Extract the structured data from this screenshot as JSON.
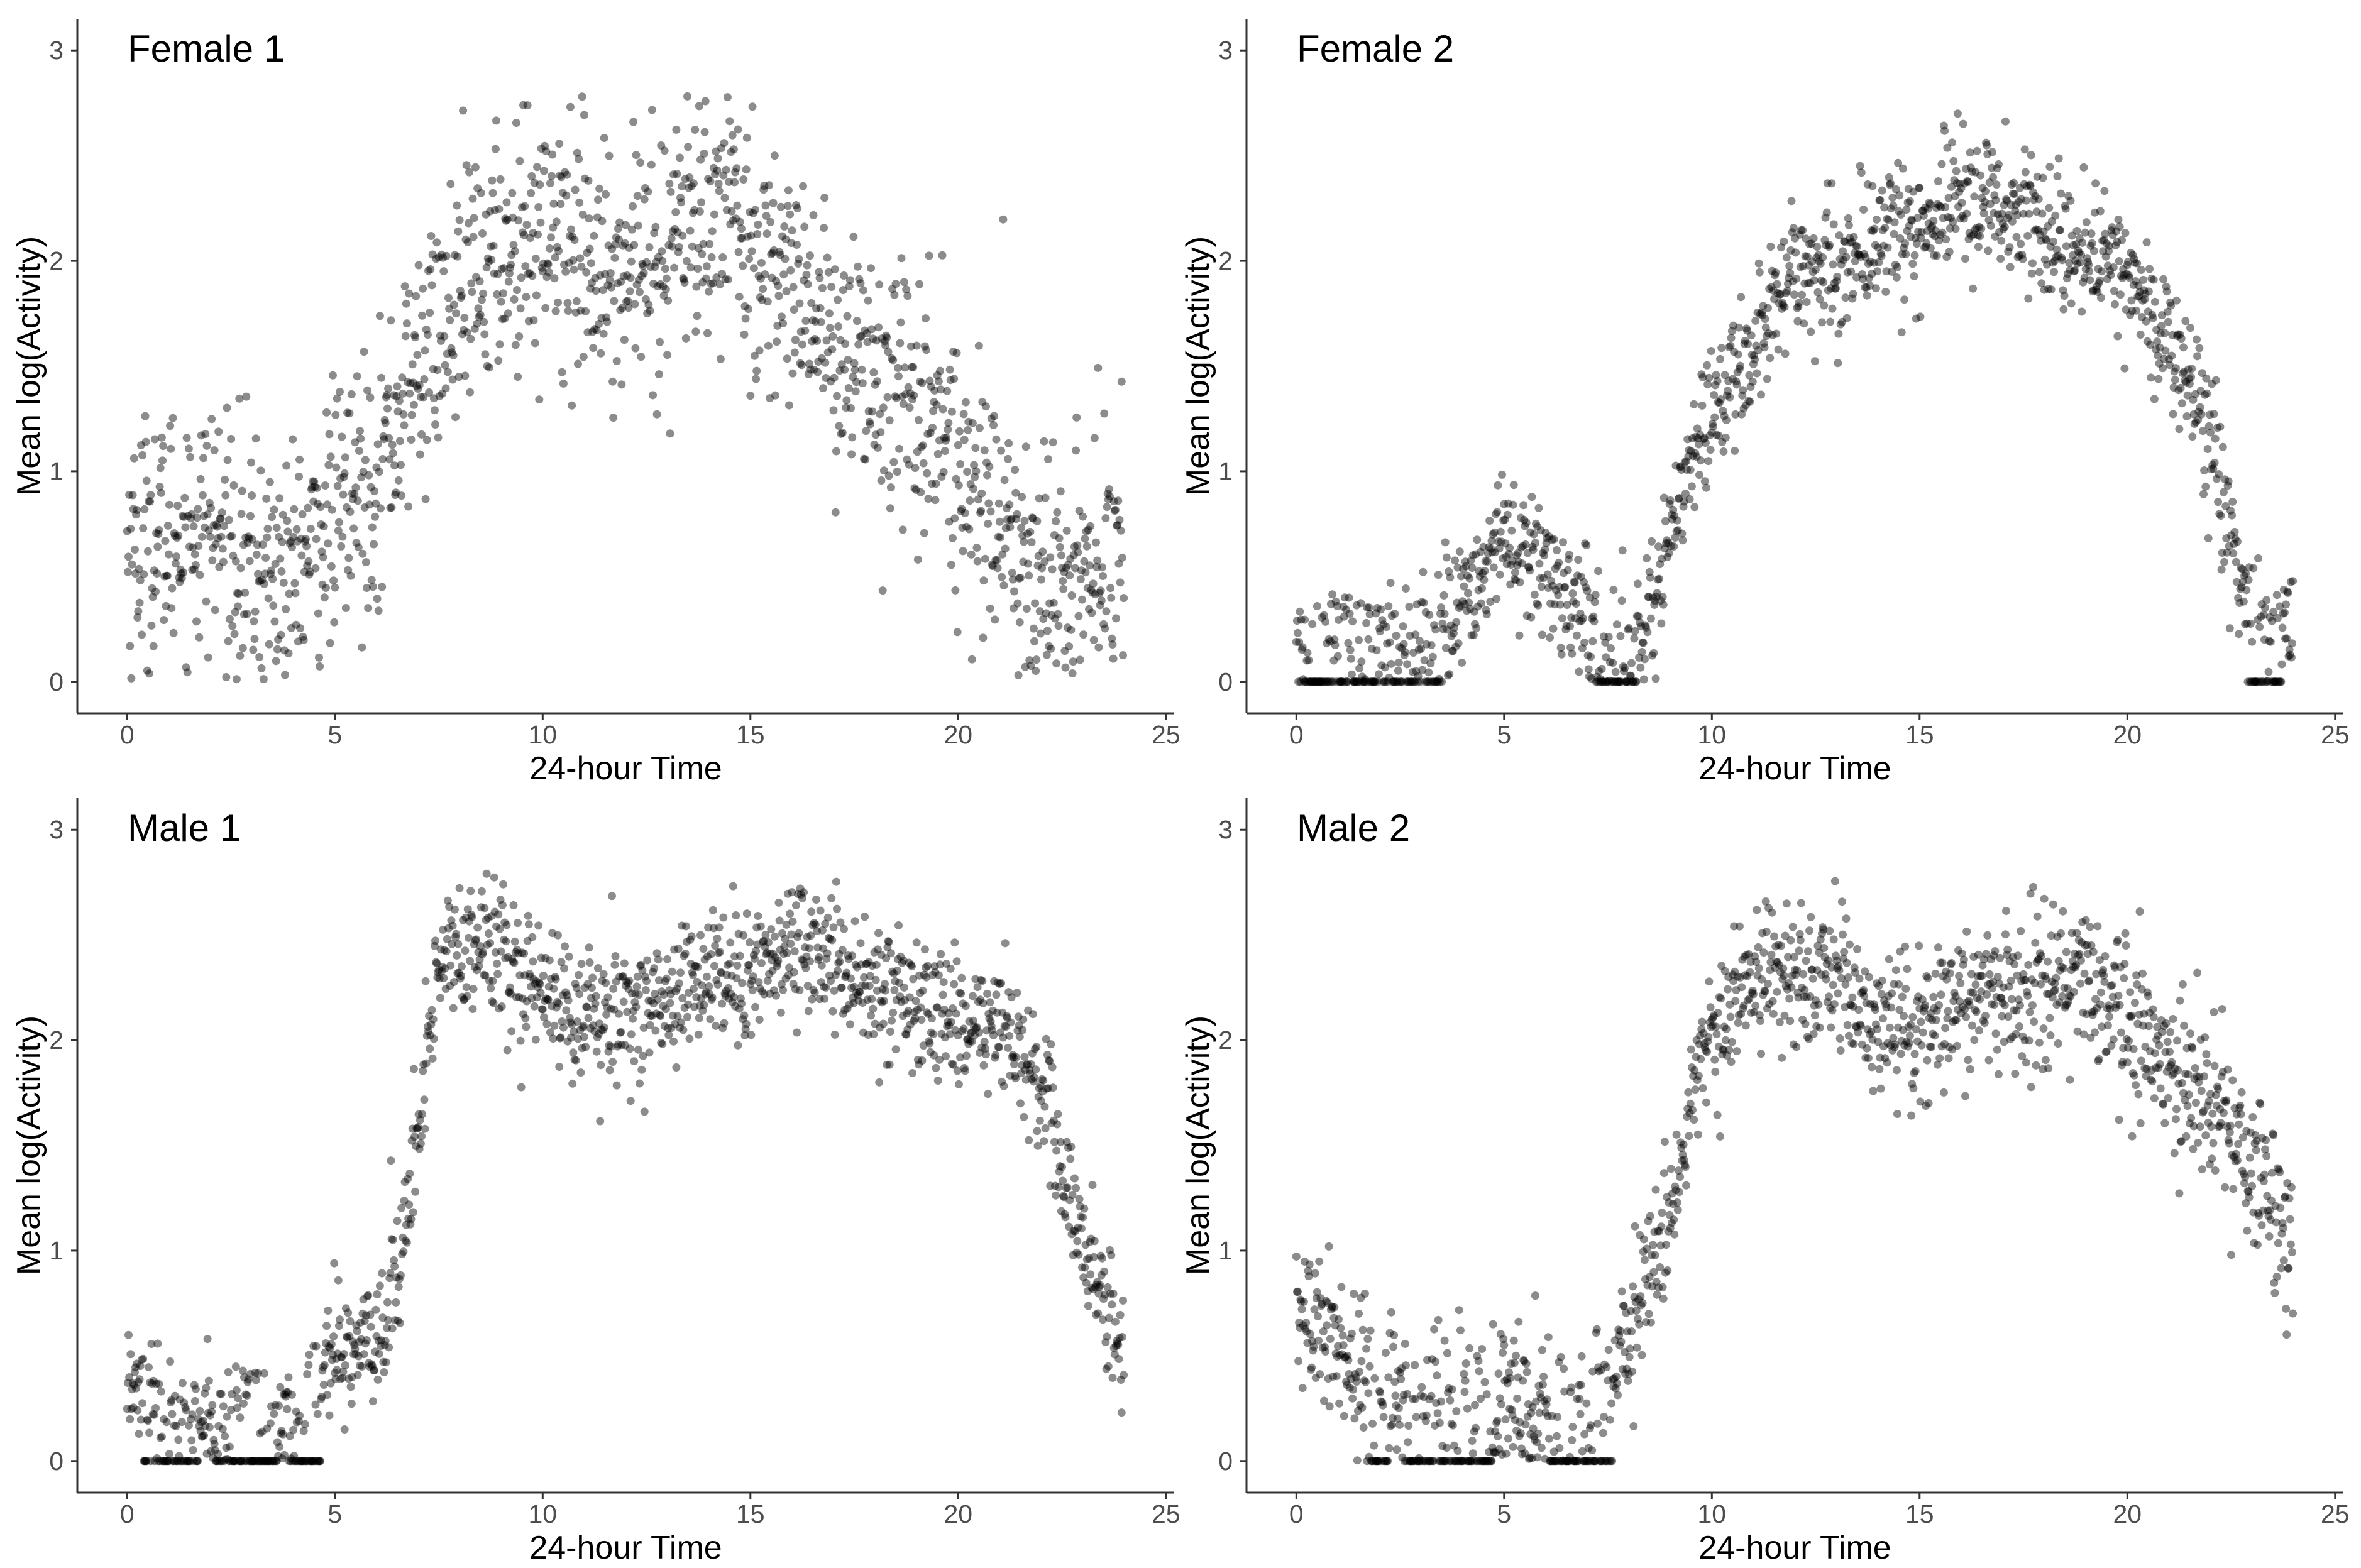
{
  "chart_data": [
    {
      "type": "scatter",
      "title": "Female 1",
      "xlabel": "24-hour Time",
      "ylabel": "Mean log(Activity)",
      "xlim": [
        -1.2,
        25.2
      ],
      "ylim": [
        -0.15,
        3.15
      ],
      "xticks": [
        "0",
        "5",
        "10",
        "15",
        "20",
        "25"
      ],
      "yticks": [
        "0",
        "1",
        "2",
        "3"
      ],
      "series": [
        {
          "name": "Female 1",
          "trend": [
            [
              0,
              0.65
            ],
            [
              2,
              0.75
            ],
            [
              3,
              0.55
            ],
            [
              4,
              0.5
            ],
            [
              5,
              0.8
            ],
            [
              6,
              1.0
            ],
            [
              7,
              1.5
            ],
            [
              8,
              1.8
            ],
            [
              9,
              2.05
            ],
            [
              10,
              2.15
            ],
            [
              11,
              2.0
            ],
            [
              12,
              1.9
            ],
            [
              13,
              2.05
            ],
            [
              14,
              2.25
            ],
            [
              15,
              2.1
            ],
            [
              16,
              1.9
            ],
            [
              17,
              1.6
            ],
            [
              18,
              1.45
            ],
            [
              19,
              1.35
            ],
            [
              20,
              1.1
            ],
            [
              21,
              0.8
            ],
            [
              22,
              0.45
            ],
            [
              23,
              0.55
            ],
            [
              24,
              0.7
            ]
          ],
          "zero_runs": [],
          "spread": 0.3
        }
      ]
    },
    {
      "type": "scatter",
      "title": "Female 2",
      "xlabel": "24-hour Time",
      "ylabel": "Mean log(Activity)",
      "xlim": [
        -1.2,
        25.2
      ],
      "ylim": [
        -0.15,
        3.15
      ],
      "xticks": [
        "0",
        "5",
        "10",
        "15",
        "20",
        "25"
      ],
      "yticks": [
        "0",
        "1",
        "2",
        "3"
      ],
      "series": [
        {
          "name": "Female 2",
          "trend": [
            [
              0,
              0.25
            ],
            [
              1,
              0.25
            ],
            [
              2,
              0.2
            ],
            [
              3,
              0.2
            ],
            [
              4,
              0.35
            ],
            [
              5,
              0.7
            ],
            [
              6,
              0.5
            ],
            [
              7,
              0.3
            ],
            [
              8,
              0.15
            ],
            [
              8.5,
              0.3
            ],
            [
              9,
              0.7
            ],
            [
              10,
              1.3
            ],
            [
              11,
              1.6
            ],
            [
              12,
              2.0
            ],
            [
              13,
              1.95
            ],
            [
              14,
              2.1
            ],
            [
              15,
              2.2
            ],
            [
              16,
              2.3
            ],
            [
              17,
              2.3
            ],
            [
              18,
              2.1
            ],
            [
              19,
              2.05
            ],
            [
              20,
              1.95
            ],
            [
              21,
              1.6
            ],
            [
              22,
              1.2
            ],
            [
              22.8,
              0.4
            ],
            [
              23.5,
              0.25
            ],
            [
              24,
              0.3
            ]
          ],
          "zero_runs": [
            [
              0,
              3.5
            ],
            [
              7.2,
              8.2
            ],
            [
              22.9,
              23.7
            ]
          ],
          "spread": 0.16
        }
      ]
    },
    {
      "type": "scatter",
      "title": "Male 1",
      "xlabel": "24-hour Time",
      "ylabel": "Mean log(Activity)",
      "xlim": [
        -1.2,
        25.2
      ],
      "ylim": [
        -0.15,
        3.15
      ],
      "xticks": [
        "0",
        "5",
        "10",
        "15",
        "20",
        "25"
      ],
      "yticks": [
        "0",
        "1",
        "2",
        "3"
      ],
      "series": [
        {
          "name": "Male 1",
          "trend": [
            [
              0,
              0.4
            ],
            [
              1,
              0.2
            ],
            [
              2,
              0.2
            ],
            [
              3,
              0.25
            ],
            [
              4,
              0.25
            ],
            [
              5,
              0.5
            ],
            [
              6,
              0.55
            ],
            [
              6.5,
              0.9
            ],
            [
              7,
              1.6
            ],
            [
              7.5,
              2.35
            ],
            [
              8,
              2.45
            ],
            [
              9,
              2.45
            ],
            [
              10,
              2.2
            ],
            [
              11,
              2.15
            ],
            [
              12,
              2.1
            ],
            [
              13,
              2.2
            ],
            [
              14,
              2.35
            ],
            [
              15,
              2.25
            ],
            [
              16,
              2.45
            ],
            [
              17,
              2.4
            ],
            [
              18,
              2.2
            ],
            [
              19,
              2.2
            ],
            [
              20,
              2.05
            ],
            [
              21,
              2.1
            ],
            [
              22,
              1.8
            ],
            [
              23,
              1.0
            ],
            [
              24,
              0.5
            ]
          ],
          "zero_runs": [
            [
              0.4,
              1.7
            ],
            [
              2.1,
              3.6
            ],
            [
              3.9,
              4.7
            ]
          ],
          "spread": 0.16
        }
      ]
    },
    {
      "type": "scatter",
      "title": "Male 2",
      "xlabel": "24-hour Time",
      "ylabel": "Mean log(Activity)",
      "xlim": [
        -1.2,
        25.2
      ],
      "ylim": [
        -0.15,
        3.15
      ],
      "xticks": [
        "0",
        "5",
        "10",
        "15",
        "20",
        "25"
      ],
      "yticks": [
        "0",
        "1",
        "2",
        "3"
      ],
      "series": [
        {
          "name": "Male 2",
          "trend": [
            [
              0,
              0.7
            ],
            [
              1,
              0.55
            ],
            [
              2,
              0.35
            ],
            [
              3,
              0.3
            ],
            [
              4,
              0.3
            ],
            [
              5,
              0.3
            ],
            [
              6,
              0.25
            ],
            [
              7,
              0.25
            ],
            [
              8,
              0.6
            ],
            [
              9,
              1.2
            ],
            [
              10,
              2.1
            ],
            [
              11,
              2.3
            ],
            [
              12,
              2.35
            ],
            [
              13,
              2.35
            ],
            [
              14,
              2.0
            ],
            [
              15,
              2.05
            ],
            [
              16,
              2.2
            ],
            [
              17,
              2.2
            ],
            [
              18,
              2.25
            ],
            [
              19,
              2.3
            ],
            [
              20,
              2.1
            ],
            [
              21,
              1.9
            ],
            [
              22,
              1.7
            ],
            [
              23,
              1.4
            ],
            [
              24,
              1.0
            ]
          ],
          "zero_runs": [
            [
              1.7,
              2.2
            ],
            [
              2.6,
              4.7
            ],
            [
              6.1,
              7.6
            ]
          ],
          "spread": 0.18
        }
      ]
    }
  ]
}
